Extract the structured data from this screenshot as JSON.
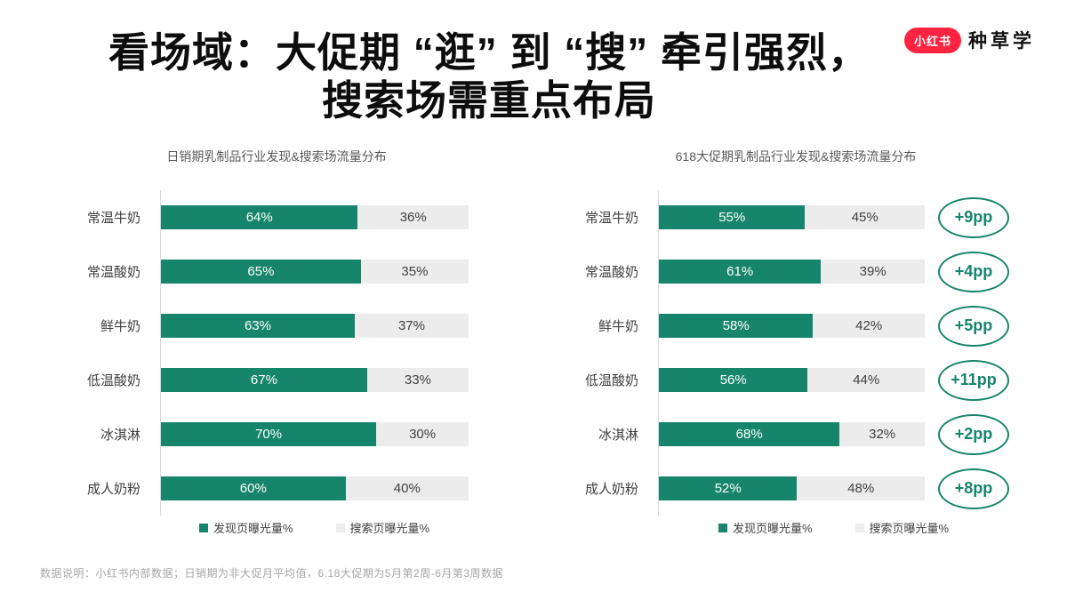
{
  "header": {
    "title_line1": "看场域：大促期 “逛” 到 “搜” 牵引强烈，",
    "title_line2": "搜索场需重点布局"
  },
  "logo": {
    "badge_text": "小红书",
    "brand_text": "种草学",
    "badge_color": "#FF2442"
  },
  "colors": {
    "bar_green": "#17856B",
    "bar_gray": "#ECECEC",
    "axis_line": "#D9D9D9",
    "title_text": "#0D0D0D",
    "chart_title_gray": "#595959",
    "footnote_gray": "#A6A6A6"
  },
  "footnote": "数据说明：小红书内部数据；日销期为非大促月平均值，6.18大促期为5月第2周-6月第3周数据",
  "chart_data": [
    {
      "type": "bar",
      "orientation": "horizontal",
      "stacked_percent": true,
      "title": "日销期乳制品行业发现&搜索场流量分布",
      "categories": [
        "常温牛奶",
        "常温酸奶",
        "鲜牛奶",
        "低温酸奶",
        "冰淇淋",
        "成人奶粉"
      ],
      "series": [
        {
          "name": "发现页曝光量%",
          "color": "#17856B",
          "values": [
            64,
            65,
            63,
            67,
            70,
            60
          ]
        },
        {
          "name": "搜索页曝光量%",
          "color": "#ECECEC",
          "values": [
            36,
            35,
            37,
            33,
            30,
            40
          ]
        }
      ],
      "xlim": [
        0,
        100
      ],
      "grid": false,
      "legend_position": "bottom"
    },
    {
      "type": "bar",
      "orientation": "horizontal",
      "stacked_percent": true,
      "title": "618大促期乳制品行业发现&搜索场流量分布",
      "categories": [
        "常温牛奶",
        "常温酸奶",
        "鲜牛奶",
        "低温酸奶",
        "冰淇淋",
        "成人奶粉"
      ],
      "series": [
        {
          "name": "发现页曝光量%",
          "color": "#17856B",
          "values": [
            55,
            61,
            58,
            56,
            68,
            52
          ]
        },
        {
          "name": "搜索页曝光量%",
          "color": "#ECECEC",
          "values": [
            45,
            39,
            42,
            44,
            32,
            48
          ]
        }
      ],
      "badges": [
        "+9pp",
        "+4pp",
        "+5pp",
        "+11pp",
        "+2pp",
        "+8pp"
      ],
      "xlim": [
        0,
        100
      ],
      "grid": false,
      "legend_position": "bottom"
    }
  ]
}
